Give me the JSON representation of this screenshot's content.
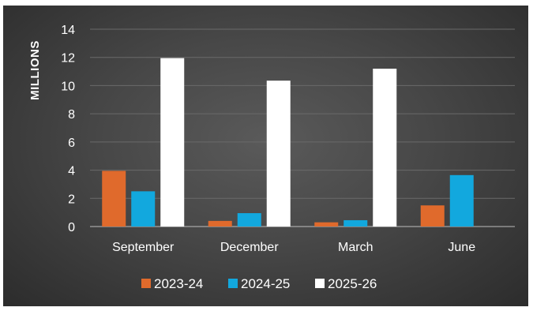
{
  "chart_data": {
    "type": "bar",
    "ylabel": "MILLIONS",
    "xlabel": "",
    "ylim": [
      0,
      14
    ],
    "yticks": [
      0,
      2,
      4,
      6,
      8,
      10,
      12,
      14
    ],
    "categories": [
      "September",
      "December",
      "March",
      "June"
    ],
    "series": [
      {
        "name": "2023-24",
        "color": "#e06a2c",
        "values": [
          3.95,
          0.4,
          0.3,
          1.5
        ]
      },
      {
        "name": "2024-25",
        "color": "#12a8de",
        "values": [
          2.5,
          0.95,
          0.45,
          3.65
        ]
      },
      {
        "name": "2025-26",
        "color": "#ffffff",
        "values": [
          11.95,
          10.35,
          11.2,
          null
        ]
      }
    ],
    "grid": true,
    "legend_position": "bottom",
    "background": "#464646"
  }
}
